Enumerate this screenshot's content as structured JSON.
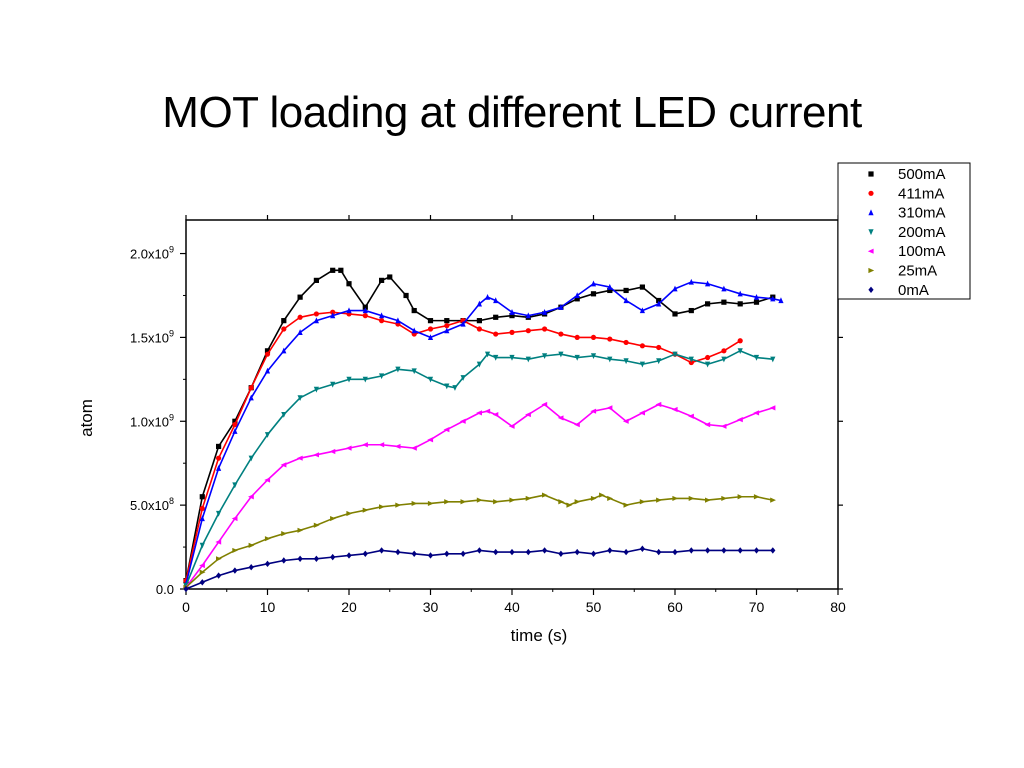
{
  "slide": {
    "title": "MOT loading at different LED current"
  },
  "chart_data": {
    "type": "scatter",
    "title": "",
    "xlabel": "time (s)",
    "ylabel": "atom",
    "xlim": [
      0,
      80
    ],
    "ylim": [
      0,
      2200000000.0
    ],
    "xticks": [
      0,
      10,
      20,
      30,
      40,
      50,
      60,
      70,
      80
    ],
    "yticks": [
      {
        "value": 0,
        "mantissa": "0.0",
        "exp": ""
      },
      {
        "value": 500000000.0,
        "mantissa": "5.0x10",
        "exp": "8"
      },
      {
        "value": 1000000000.0,
        "mantissa": "1.0x10",
        "exp": "9"
      },
      {
        "value": 1500000000.0,
        "mantissa": "1.5x10",
        "exp": "9"
      },
      {
        "value": 2000000000.0,
        "mantissa": "2.0x10",
        "exp": "9"
      }
    ],
    "grid": false,
    "legend_position": "top-right, outside plot",
    "series": [
      {
        "name": "500mA",
        "color": "#000000",
        "marker": "square",
        "x": [
          0,
          2,
          4,
          6,
          8,
          10,
          12,
          14,
          16,
          18,
          19,
          20,
          22,
          24,
          25,
          27,
          28,
          30,
          32,
          34,
          36,
          38,
          40,
          42,
          44,
          46,
          48,
          50,
          52,
          54,
          56,
          58,
          60,
          62,
          64,
          66,
          68,
          70,
          72
        ],
        "y": [
          50000000.0,
          550000000.0,
          850000000.0,
          1000000000.0,
          1200000000.0,
          1420000000.0,
          1600000000.0,
          1740000000.0,
          1840000000.0,
          1900000000.0,
          1900000000.0,
          1820000000.0,
          1680000000.0,
          1840000000.0,
          1860000000.0,
          1750000000.0,
          1660000000.0,
          1600000000.0,
          1600000000.0,
          1600000000.0,
          1600000000.0,
          1620000000.0,
          1630000000.0,
          1620000000.0,
          1640000000.0,
          1680000000.0,
          1730000000.0,
          1760000000.0,
          1780000000.0,
          1780000000.0,
          1800000000.0,
          1720000000.0,
          1640000000.0,
          1660000000.0,
          1700000000.0,
          1710000000.0,
          1700000000.0,
          1710000000.0,
          1740000000.0
        ]
      },
      {
        "name": "411mA",
        "color": "#ff0000",
        "marker": "circle",
        "x": [
          0,
          2,
          4,
          6,
          8,
          10,
          12,
          14,
          16,
          18,
          20,
          22,
          24,
          26,
          28,
          30,
          32,
          34,
          36,
          38,
          40,
          42,
          44,
          46,
          48,
          50,
          52,
          54,
          56,
          58,
          60,
          62,
          64,
          66,
          68
        ],
        "y": [
          50000000.0,
          480000000.0,
          780000000.0,
          980000000.0,
          1200000000.0,
          1400000000.0,
          1550000000.0,
          1620000000.0,
          1640000000.0,
          1650000000.0,
          1640000000.0,
          1630000000.0,
          1600000000.0,
          1580000000.0,
          1520000000.0,
          1550000000.0,
          1570000000.0,
          1600000000.0,
          1550000000.0,
          1520000000.0,
          1530000000.0,
          1540000000.0,
          1550000000.0,
          1520000000.0,
          1500000000.0,
          1500000000.0,
          1490000000.0,
          1470000000.0,
          1450000000.0,
          1440000000.0,
          1400000000.0,
          1350000000.0,
          1380000000.0,
          1420000000.0,
          1480000000.0
        ]
      },
      {
        "name": "310mA",
        "color": "#0000ff",
        "marker": "triangle-up",
        "x": [
          0,
          2,
          4,
          6,
          8,
          10,
          12,
          14,
          16,
          18,
          20,
          22,
          24,
          26,
          28,
          30,
          32,
          34,
          36,
          37,
          38,
          40,
          42,
          44,
          46,
          48,
          50,
          52,
          54,
          56,
          58,
          60,
          62,
          64,
          66,
          68,
          70,
          72,
          73
        ],
        "y": [
          30000000.0,
          420000000.0,
          720000000.0,
          940000000.0,
          1140000000.0,
          1300000000.0,
          1420000000.0,
          1530000000.0,
          1600000000.0,
          1630000000.0,
          1660000000.0,
          1660000000.0,
          1630000000.0,
          1600000000.0,
          1540000000.0,
          1500000000.0,
          1540000000.0,
          1580000000.0,
          1700000000.0,
          1740000000.0,
          1720000000.0,
          1650000000.0,
          1630000000.0,
          1650000000.0,
          1680000000.0,
          1750000000.0,
          1820000000.0,
          1800000000.0,
          1720000000.0,
          1660000000.0,
          1700000000.0,
          1790000000.0,
          1830000000.0,
          1820000000.0,
          1790000000.0,
          1760000000.0,
          1740000000.0,
          1730000000.0,
          1720000000.0
        ]
      },
      {
        "name": "200mA",
        "color": "#008080",
        "marker": "triangle-down",
        "x": [
          0,
          2,
          4,
          6,
          8,
          10,
          12,
          14,
          16,
          18,
          20,
          22,
          24,
          26,
          28,
          30,
          32,
          33,
          34,
          36,
          37,
          38,
          40,
          42,
          44,
          46,
          48,
          50,
          52,
          54,
          56,
          58,
          60,
          62,
          64,
          66,
          68,
          70,
          72
        ],
        "y": [
          20000000.0,
          260000000.0,
          450000000.0,
          620000000.0,
          780000000.0,
          920000000.0,
          1040000000.0,
          1140000000.0,
          1190000000.0,
          1220000000.0,
          1250000000.0,
          1250000000.0,
          1270000000.0,
          1310000000.0,
          1300000000.0,
          1250000000.0,
          1210000000.0,
          1200000000.0,
          1260000000.0,
          1340000000.0,
          1400000000.0,
          1380000000.0,
          1380000000.0,
          1370000000.0,
          1390000000.0,
          1400000000.0,
          1380000000.0,
          1390000000.0,
          1370000000.0,
          1360000000.0,
          1340000000.0,
          1360000000.0,
          1400000000.0,
          1370000000.0,
          1340000000.0,
          1370000000.0,
          1420000000.0,
          1380000000.0,
          1370000000.0
        ]
      },
      {
        "name": "100mA",
        "color": "#ff00ff",
        "marker": "triangle-left",
        "x": [
          0,
          2,
          4,
          6,
          8,
          10,
          12,
          14,
          16,
          18,
          20,
          22,
          24,
          26,
          28,
          30,
          32,
          34,
          36,
          37,
          38,
          40,
          42,
          44,
          46,
          48,
          50,
          52,
          54,
          56,
          58,
          60,
          62,
          64,
          66,
          68,
          70,
          72
        ],
        "y": [
          10000000.0,
          140000000.0,
          280000000.0,
          420000000.0,
          550000000.0,
          650000000.0,
          740000000.0,
          780000000.0,
          800000000.0,
          820000000.0,
          840000000.0,
          860000000.0,
          860000000.0,
          850000000.0,
          840000000.0,
          890000000.0,
          950000000.0,
          1000000000.0,
          1050000000.0,
          1060000000.0,
          1040000000.0,
          970000000.0,
          1040000000.0,
          1100000000.0,
          1020000000.0,
          980000000.0,
          1060000000.0,
          1080000000.0,
          1000000000.0,
          1050000000.0,
          1100000000.0,
          1070000000.0,
          1030000000.0,
          980000000.0,
          970000000.0,
          1010000000.0,
          1050000000.0,
          1080000000.0
        ]
      },
      {
        "name": "25mA",
        "color": "#808000",
        "marker": "triangle-right",
        "x": [
          0,
          2,
          4,
          6,
          8,
          10,
          12,
          14,
          16,
          18,
          20,
          22,
          24,
          26,
          28,
          30,
          32,
          34,
          36,
          38,
          40,
          42,
          44,
          46,
          47,
          48,
          50,
          51,
          52,
          54,
          56,
          58,
          60,
          62,
          64,
          66,
          68,
          70,
          72
        ],
        "y": [
          10000000.0,
          100000000.0,
          180000000.0,
          230000000.0,
          260000000.0,
          300000000.0,
          330000000.0,
          350000000.0,
          380000000.0,
          420000000.0,
          450000000.0,
          470000000.0,
          490000000.0,
          500000000.0,
          510000000.0,
          510000000.0,
          520000000.0,
          520000000.0,
          530000000.0,
          520000000.0,
          530000000.0,
          540000000.0,
          560000000.0,
          520000000.0,
          500000000.0,
          520000000.0,
          540000000.0,
          560000000.0,
          540000000.0,
          500000000.0,
          520000000.0,
          530000000.0,
          540000000.0,
          540000000.0,
          530000000.0,
          540000000.0,
          550000000.0,
          550000000.0,
          530000000.0
        ]
      },
      {
        "name": "0mA",
        "color": "#000080",
        "marker": "diamond",
        "x": [
          0,
          2,
          4,
          6,
          8,
          10,
          12,
          14,
          16,
          18,
          20,
          22,
          24,
          26,
          28,
          30,
          32,
          34,
          36,
          38,
          40,
          42,
          44,
          46,
          48,
          50,
          52,
          54,
          56,
          58,
          60,
          62,
          64,
          66,
          68,
          70,
          72
        ],
        "y": [
          0.0,
          40000000.0,
          80000000.0,
          110000000.0,
          130000000.0,
          150000000.0,
          170000000.0,
          180000000.0,
          180000000.0,
          190000000.0,
          200000000.0,
          210000000.0,
          230000000.0,
          220000000.0,
          210000000.0,
          200000000.0,
          210000000.0,
          210000000.0,
          230000000.0,
          220000000.0,
          220000000.0,
          220000000.0,
          230000000.0,
          210000000.0,
          220000000.0,
          210000000.0,
          230000000.0,
          220000000.0,
          240000000.0,
          220000000.0,
          220000000.0,
          230000000.0,
          230000000.0,
          230000000.0,
          230000000.0,
          230000000.0,
          230000000.0
        ]
      }
    ]
  }
}
